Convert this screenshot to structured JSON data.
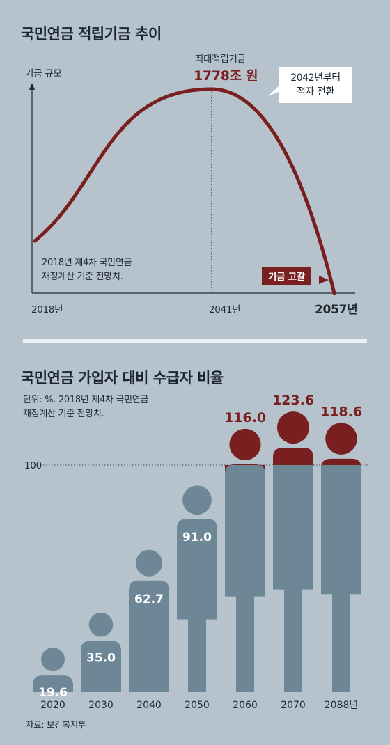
{
  "colors": {
    "background": "#b7c3cc",
    "accent": "#7a1f1f",
    "figure": "#6e8797",
    "text": "#1f2a33"
  },
  "section1": {
    "title": "국민연금 적립기금 추이",
    "ylabel": "기금 규모",
    "peak_label": "최대적립기금",
    "peak_value": "1778조 원",
    "callout": "2042년부터\n적자 전환",
    "depletion_label": "기금 고갈",
    "note_line1": "2018년 제4차 국민연금",
    "note_line2": "재정계산 기준 전망치.",
    "x_start": "2018년",
    "x_peak": "2041년",
    "x_end": "2057년"
  },
  "section2": {
    "title": "국민연금 가입자 대비 수급자 비율",
    "note_line1": "단위: %. 2018년 제4차 국민연금",
    "note_line2": "재정계산 기준 전망치.",
    "reference_label": "100",
    "source": "자료: 보건복지부"
  },
  "chart_data": [
    {
      "type": "line",
      "title": "국민연금 적립기금 추이",
      "ylabel": "기금 규모",
      "x": [
        2018,
        2041,
        2057
      ],
      "x_tick_labels": [
        "2018년",
        "2041년",
        "2057년"
      ],
      "series": [
        {
          "values_labeled": {
            "2041": "1778조 원"
          }
        }
      ],
      "annotations": [
        "최대적립기금 1778조 원",
        "2042년부터 적자 전환",
        "기금 고갈"
      ]
    },
    {
      "type": "bar",
      "title": "국민연금 가입자 대비 수급자 비율",
      "categories": [
        "2020",
        "2030",
        "2040",
        "2050",
        "2060",
        "2070",
        "2088년"
      ],
      "values": [
        19.6,
        35.0,
        62.7,
        91.0,
        116.0,
        123.6,
        118.6
      ],
      "value_labels": [
        "19.6",
        "35.0",
        "62.7",
        "91.0",
        "116.0",
        "123.6",
        "118.6"
      ],
      "reference_line": 100,
      "ylim": [
        0,
        130
      ]
    }
  ]
}
